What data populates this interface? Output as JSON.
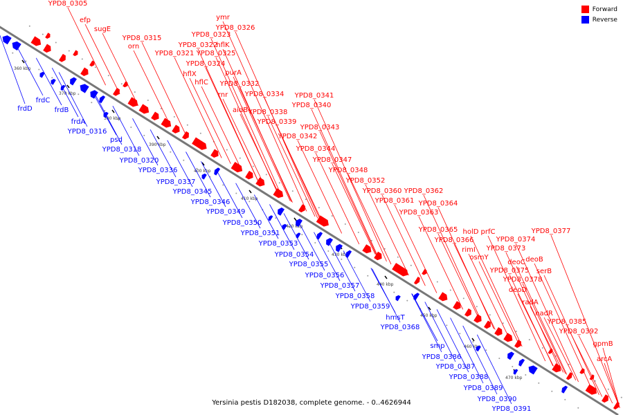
{
  "legend": {
    "forward_label": "Forward",
    "reverse_label": "Reverse",
    "forward_color": "#ff0000",
    "reverse_color": "#0000ff"
  },
  "caption": "Yersinia pestis D182038, complete genome. - 0..4626944",
  "kbp_ticks": [
    "360 kbp",
    "370 kbp",
    "380 kbp",
    "390 kbp",
    "400 kbp",
    "410 kbp",
    "420 kbp",
    "430 kbp",
    "440 kbp",
    "450 kbp",
    "460 kbp",
    "470 kbp"
  ],
  "forward_genes": [
    "YPD8_0305",
    "efp",
    "sugE",
    "YPD8_0315",
    "orn",
    "ymr",
    "YPD8_0326",
    "YPD8_0323",
    "YPD8_0322",
    "hflK",
    "YPD8_0321",
    "YPD8_0325",
    "YPD8_0324",
    "hflX",
    "purA",
    "hflC",
    "YPD8_0332",
    "rnr",
    "YPD8_0334",
    "YPD8_0341",
    "YPD8_0340",
    "aidB",
    "YPD8_0338",
    "YPD8_0339",
    "YPD8_0343",
    "YPD8_0342",
    "YPD8_0344",
    "YPD8_0347",
    "YPD8_0348",
    "YPD8_0352",
    "YPD8_0360",
    "YPD8_0362",
    "YPD8_0361",
    "YPD8_0364",
    "YPD8_0363",
    "YPD8_0365",
    "holD",
    "prfC",
    "YPD8_0377",
    "YPD8_0366",
    "YPD8_0374",
    "rimI",
    "YPD8_0373",
    "osmY",
    "deoC",
    "deoB",
    "YPD8_0375",
    "serB",
    "YPD8_0378",
    "deoD",
    "radA",
    "nadR",
    "YPD8_0385",
    "YPD8_0392",
    "gpmB",
    "arcA"
  ],
  "reverse_genes": [
    "frdC",
    "frdD",
    "frdB",
    "frdA",
    "YPD8_0316",
    "psd",
    "YPD8_0318",
    "YPD8_0320",
    "YPD8_0336",
    "YPD8_0337",
    "YPD8_0345",
    "YPD8_0346",
    "YPD8_0349",
    "YPD8_0350",
    "YPD8_0351",
    "YPD8_0353",
    "YPD8_0354",
    "YPD8_0355",
    "YPD8_0356",
    "YPD8_0357",
    "YPD8_0358",
    "YPD8_0359",
    "hmsT",
    "YPD8_0368",
    "smp",
    "YPD8_0386",
    "YPD8_0387",
    "YPD8_0388",
    "YPD8_0389",
    "YPD8_0390",
    "YPD8_0391"
  ]
}
